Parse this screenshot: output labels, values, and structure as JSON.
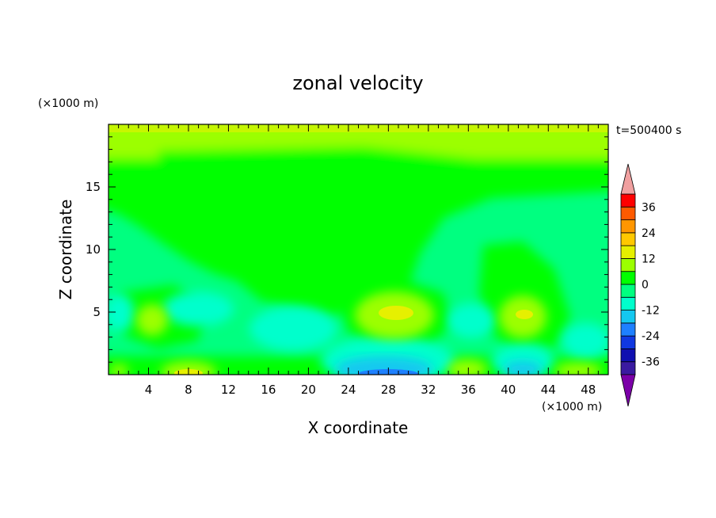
{
  "chart_data": {
    "type": "heatmap",
    "title": "zonal velocity",
    "xlabel": "X coordinate",
    "ylabel": "Z coordinate",
    "x_unit": "(×1000 m)",
    "y_unit": "(×1000 m)",
    "time_label": "t=500400 s",
    "xlim": [
      0,
      50
    ],
    "ylim": [
      0,
      20
    ],
    "x_ticks": [
      4,
      8,
      12,
      16,
      20,
      24,
      28,
      32,
      36,
      40,
      44,
      48
    ],
    "y_ticks": [
      5,
      10,
      15
    ],
    "colorbar": {
      "levels": [
        -42,
        -36,
        -30,
        -24,
        -18,
        -12,
        -6,
        0,
        6,
        12,
        18,
        24,
        30,
        36,
        42
      ],
      "tick_labels": [
        "36",
        "24",
        "12",
        "0",
        "-12",
        "-24",
        "-36"
      ],
      "tick_values": [
        36,
        24,
        12,
        0,
        -12,
        -24,
        -36
      ],
      "colors": [
        "#7b00a8",
        "#3a1aa0",
        "#1010b0",
        "#1038e0",
        "#1e80ff",
        "#14c8f0",
        "#00ffcc",
        "#00ff80",
        "#00ff00",
        "#9cff00",
        "#e6f000",
        "#ffc800",
        "#ff9600",
        "#ff5a00",
        "#ff0000",
        "#f0a0a0"
      ],
      "extend": "both"
    },
    "field_features": [
      {
        "x": 29.5,
        "z": 4.8,
        "value": 9,
        "note": "positive core"
      },
      {
        "x": 43.0,
        "z": 4.5,
        "value": 8
      },
      {
        "x": 8.5,
        "z": 0.3,
        "value": 10
      },
      {
        "x": 4.5,
        "z": 4.2,
        "value": 7
      },
      {
        "x": 35.5,
        "z": 0.6,
        "value": 7
      },
      {
        "x": 46.5,
        "z": 0.3,
        "value": 7
      },
      {
        "x": 29.0,
        "z": 0.8,
        "value": -16,
        "note": "negative core"
      },
      {
        "x": 41.5,
        "z": 1.0,
        "value": -12
      },
      {
        "x": 17.0,
        "z": 1.8,
        "value": -10
      },
      {
        "x": 38.0,
        "z": 4.0,
        "value": -8
      },
      {
        "x": 26.0,
        "z": 13.0,
        "value": 0
      }
    ]
  }
}
